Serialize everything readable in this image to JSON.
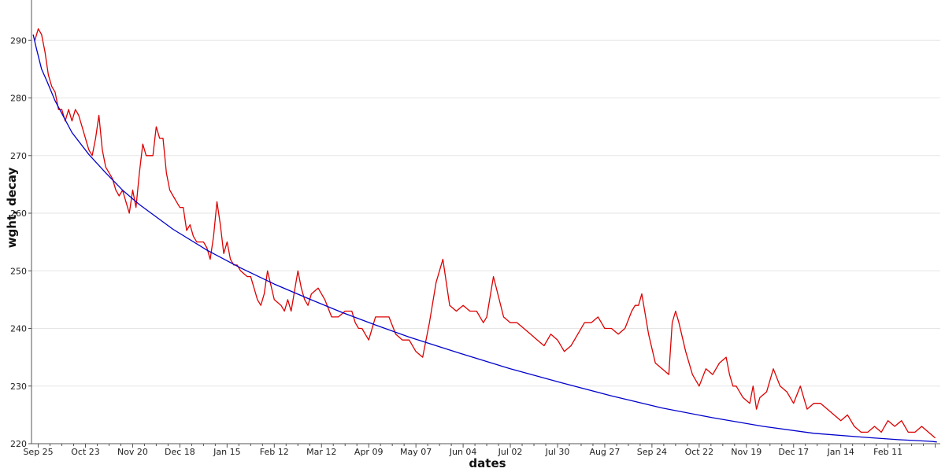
{
  "chart_data": {
    "type": "line",
    "xlabel": "dates",
    "ylabel": "wght, decay",
    "x_ticks": [
      "Sep 25",
      "Oct 23",
      "Nov 20",
      "Dec 18",
      "Jan 15",
      "Feb 12",
      "Mar 12",
      "Apr 09",
      "May 07",
      "Jun 04",
      "Jul 02",
      "Jul 30",
      "Aug 27",
      "Sep 24",
      "Oct 22",
      "Nov 19",
      "Dec 17",
      "Jan 14",
      "Feb 11"
    ],
    "y_ticks": [
      220,
      230,
      240,
      250,
      260,
      270,
      280,
      290
    ],
    "ylim": [
      220,
      297
    ],
    "xlim_days": [
      -4,
      535
    ],
    "x_tick_interval_days": 28,
    "grid": "horizontal",
    "series": [
      {
        "color": "#dd0000",
        "x_days": [
          -2,
          0,
          2,
          4,
          6,
          8,
          10,
          12,
          14,
          16,
          18,
          20,
          22,
          24,
          26,
          28,
          30,
          32,
          34,
          36,
          38,
          40,
          42,
          44,
          46,
          48,
          50,
          52,
          54,
          56,
          58,
          60,
          62,
          64,
          66,
          68,
          70,
          72,
          74,
          76,
          78,
          80,
          82,
          84,
          86,
          88,
          90,
          92,
          94,
          96,
          98,
          100,
          102,
          104,
          106,
          108,
          110,
          112,
          114,
          116,
          118,
          120,
          124,
          126,
          128,
          130,
          132,
          134,
          136,
          140,
          144,
          146,
          148,
          150,
          154,
          156,
          158,
          160,
          162,
          166,
          170,
          174,
          178,
          182,
          186,
          188,
          190,
          192,
          196,
          200,
          204,
          208,
          212,
          216,
          220,
          224,
          228,
          232,
          236,
          240,
          244,
          248,
          252,
          256,
          260,
          262,
          264,
          266,
          270,
          276,
          280,
          284,
          288,
          292,
          296,
          300,
          304,
          308,
          312,
          316,
          320,
          324,
          328,
          332,
          336,
          340,
          344,
          348,
          352,
          354,
          356,
          358,
          362,
          366,
          370,
          374,
          376,
          378,
          380,
          384,
          388,
          392,
          396,
          400,
          404,
          408,
          410,
          412,
          414,
          418,
          422,
          424,
          426,
          428,
          432,
          436,
          440,
          444,
          448,
          452,
          456,
          460,
          464,
          468,
          472,
          476,
          480,
          484,
          488,
          492,
          496,
          500,
          504,
          508,
          512,
          516,
          520,
          524,
          528,
          532
        ],
        "y": [
          290,
          292,
          291,
          288,
          284,
          282,
          281,
          278,
          278,
          276,
          278,
          276,
          278,
          277,
          275,
          273,
          271,
          270,
          273,
          277,
          271,
          268,
          267,
          266,
          264,
          263,
          264,
          262,
          260,
          264,
          261,
          267,
          272,
          270,
          270,
          270,
          275,
          273,
          273,
          267,
          264,
          263,
          262,
          261,
          261,
          257,
          258,
          256,
          255,
          255,
          255,
          254,
          252,
          256,
          262,
          258,
          253,
          255,
          252,
          251,
          251,
          250,
          249,
          249,
          247,
          245,
          244,
          246,
          250,
          245,
          244,
          243,
          245,
          243,
          250,
          247,
          245,
          244,
          246,
          247,
          245,
          242,
          242,
          243,
          243,
          241,
          240,
          240,
          238,
          242,
          242,
          242,
          239,
          238,
          238,
          236,
          235,
          241,
          248,
          252,
          244,
          243,
          244,
          243,
          243,
          242,
          241,
          242,
          249,
          242,
          241,
          241,
          240,
          239,
          238,
          237,
          239,
          238,
          236,
          237,
          239,
          241,
          241,
          242,
          240,
          240,
          239,
          240,
          243,
          244,
          244,
          246,
          239,
          234,
          233,
          232,
          241,
          243,
          241,
          236,
          232,
          230,
          233,
          232,
          234,
          235,
          232,
          230,
          230,
          228,
          227,
          230,
          226,
          228,
          229,
          233,
          230,
          229,
          227,
          230,
          226,
          227,
          227,
          226,
          225,
          224,
          225,
          223,
          222,
          222,
          223,
          222,
          224,
          223,
          224,
          222,
          222,
          223,
          222,
          221
        ]
      },
      {
        "color": "#0000cc",
        "x_days": [
          -3,
          -1,
          2,
          5,
          10,
          20,
          30,
          40,
          50,
          60,
          80,
          100,
          120,
          140,
          160,
          180,
          200,
          220,
          250,
          280,
          310,
          340,
          370,
          400,
          430,
          460,
          490,
          510,
          530,
          533
        ],
        "y": [
          291,
          288.5,
          285,
          283,
          279.5,
          274,
          270.2,
          267,
          264,
          261.5,
          257.2,
          253.6,
          250.5,
          247.7,
          245.2,
          242.8,
          240.6,
          238.5,
          235.7,
          233,
          230.6,
          228.3,
          226.2,
          224.5,
          223,
          221.8,
          221.1,
          220.7,
          220.4,
          220.3
        ]
      }
    ]
  }
}
